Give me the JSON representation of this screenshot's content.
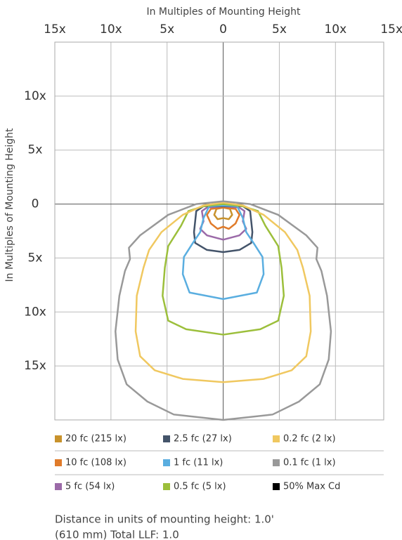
{
  "chart_data": {
    "type": "contour",
    "x_label": "In Multiples of Mounting Height",
    "y_label": "In Multiples of Mounting Height",
    "xlim": [
      -15,
      14.3
    ],
    "ylim": [
      -20,
      15
    ],
    "xticks": [
      {
        "value": -15,
        "label": "15x"
      },
      {
        "value": -10,
        "label": "10x"
      },
      {
        "value": -5,
        "label": "5x"
      },
      0,
      {
        "value": 5,
        "label": "5x"
      },
      {
        "value": 10,
        "label": "10x"
      },
      {
        "value": 15,
        "label": "15x"
      }
    ],
    "yticks": [
      {
        "value": 10,
        "label": "10x"
      },
      {
        "value": 5,
        "label": "5x"
      },
      0,
      {
        "value": -5,
        "label": "5x"
      },
      {
        "value": -10,
        "label": "10x"
      },
      {
        "value": -15,
        "label": "15x"
      }
    ],
    "grid": true,
    "series": [
      {
        "name": "20 fc (215 lx)",
        "color": "#c8922c",
        "x": [
          0,
          -0.6,
          -0.8,
          -0.5,
          0,
          0.5,
          0.8,
          0.6
        ],
        "y": [
          -0.33,
          -0.45,
          -1,
          -1.4,
          -1.3,
          -1.4,
          -1,
          -0.45
        ]
      },
      {
        "name": "10 fc (108 lx)",
        "color": "#e07b2a",
        "x": [
          0,
          -1.1,
          -1.45,
          -1.1,
          -0.5,
          0,
          0.5,
          1.1,
          1.45,
          1.1
        ],
        "y": [
          -0.33,
          -0.45,
          -1,
          -1.8,
          -2.3,
          -2.1,
          -2.3,
          -1.8,
          -1,
          -0.45
        ]
      },
      {
        "name": "5 fc (54 lx)",
        "color": "#9b6aa8",
        "x": [
          0,
          -1.45,
          -1.9,
          -1.75,
          -2.05,
          -1.45,
          0,
          1.45,
          2.05,
          1.75,
          1.9,
          1.45
        ],
        "y": [
          -0.2,
          -0.33,
          -0.65,
          -1.6,
          -2.3,
          -2.9,
          -3.3,
          -2.9,
          -2.3,
          -1.6,
          -0.65,
          -0.33
        ]
      },
      {
        "name": "2.5 fc (27 lx)",
        "color": "#44546a",
        "x": [
          0,
          -1.75,
          -2.4,
          -2.6,
          -2.5,
          -1.45,
          0,
          1.45,
          2.5,
          2.6,
          2.4,
          1.75
        ],
        "y": [
          -0.2,
          -0.2,
          -0.65,
          -2.6,
          -3.6,
          -4.25,
          -4.45,
          -4.25,
          -3.6,
          -2.6,
          -0.65,
          -0.2
        ]
      },
      {
        "name": "1 fc (11 lx)",
        "color": "#5aaee0",
        "x": [
          0,
          -1.25,
          -1.75,
          -2.05,
          -2.7,
          -3.5,
          -3.6,
          -3,
          0,
          3,
          3.6,
          3.5,
          2.7,
          2.05,
          1.75,
          1.25
        ],
        "y": [
          -0.13,
          -0.2,
          -1.3,
          -2.6,
          -3.6,
          -4.9,
          -6.5,
          -8.2,
          -8.8,
          -8.2,
          -6.5,
          -4.9,
          -3.6,
          -2.6,
          -1.3,
          -0.2
        ]
      },
      {
        "name": "0.5 fc (5 lx)",
        "color": "#9cbf3b",
        "x": [
          0,
          -1.75,
          -3.1,
          -3.75,
          -4.9,
          -5.2,
          -5.4,
          -4.9,
          -3.3,
          0,
          3.3,
          4.9,
          5.4,
          5.2,
          4.9,
          3.75,
          3.1,
          1.75
        ],
        "y": [
          0,
          -0.2,
          -0.65,
          -2,
          -3.9,
          -5.9,
          -8.5,
          -10.8,
          -11.6,
          -12.1,
          -11.6,
          -10.8,
          -8.5,
          -5.9,
          -3.9,
          -2,
          -0.65,
          -0.2
        ]
      },
      {
        "name": "0.2 fc (2 lx)",
        "color": "#f0c860",
        "x": [
          0,
          -1.75,
          -3.6,
          -5.5,
          -6.6,
          -7.1,
          -7.7,
          -7.8,
          -7.4,
          -6.1,
          -3.6,
          0,
          3.6,
          6.1,
          7.4,
          7.8,
          7.7,
          7.1,
          6.6,
          5.5,
          3.6,
          1.75
        ],
        "y": [
          0.13,
          -0.13,
          -1,
          -2.6,
          -4.25,
          -5.9,
          -8.5,
          -11.8,
          -14.1,
          -15.4,
          -16.2,
          -16.5,
          -16.2,
          -15.4,
          -14.1,
          -11.8,
          -8.5,
          -5.9,
          -4.25,
          -2.6,
          -1,
          -0.13
        ]
      },
      {
        "name": "0.1 fc (1 lx)",
        "color": "#999999",
        "x": [
          0,
          -2.4,
          -4.9,
          -7.4,
          -8.4,
          -8.3,
          -8.75,
          -9.25,
          -9.6,
          -9.4,
          -8.6,
          -6.75,
          -4.4,
          0,
          4.4,
          6.75,
          8.6,
          9.4,
          9.6,
          9.25,
          8.75,
          8.3,
          8.4,
          7.4,
          4.9,
          2.4
        ],
        "y": [
          0.26,
          0,
          -1,
          -2.9,
          -4.05,
          -5.1,
          -6.2,
          -8.5,
          -11.8,
          -14.4,
          -16.7,
          -18.3,
          -19.5,
          -20,
          -19.5,
          -18.3,
          -16.7,
          -14.4,
          -11.8,
          -8.5,
          -6.2,
          -5.1,
          -4.05,
          -2.9,
          -1,
          0
        ]
      },
      {
        "name": "50% Max Cd",
        "color": "#000000",
        "x": [],
        "y": []
      }
    ],
    "footnote": [
      "Distance in units of mounting height: 1.0'",
      "(610 mm) Total LLF: 1.0"
    ]
  }
}
